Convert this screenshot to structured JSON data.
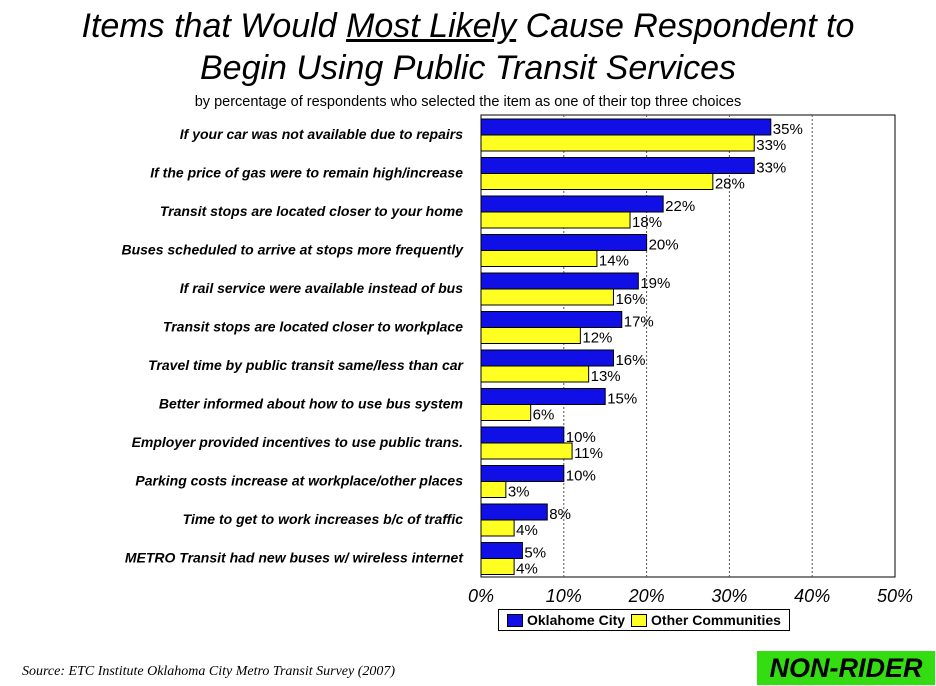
{
  "title": {
    "line1_pre": "Items that Would ",
    "line1_u": "Most Likely",
    "line1_post": " Cause Respondent to",
    "line2": "Begin Using Public Transit Services"
  },
  "subtitle": "by percentage of respondents who selected the item as one of their top three choices",
  "source": "Source:  ETC Institute Oklahoma City Metro Transit Survey (2007)",
  "badge": "NON-RIDER",
  "colors": {
    "oklahoma": "#1010e6",
    "other": "#ffff22",
    "badge": "#33dd11"
  },
  "chart_data": {
    "type": "bar",
    "orientation": "horizontal",
    "categories": [
      "If your car was not available due to repairs",
      "If the price of gas were to remain high/increase",
      "Transit stops are located closer to your home",
      "Buses scheduled to arrive at stops more frequently",
      "If rail service were available instead of bus",
      "Transit stops are located closer to workplace",
      "Travel time by public transit same/less than car",
      "Better informed about how to use bus system",
      "Employer provided incentives to use public trans.",
      "Parking costs increase at workplace/other places",
      "Time to get to work increases b/c of traffic",
      "METRO Transit had new buses w/ wireless internet"
    ],
    "series": [
      {
        "name": "Oklahome City",
        "values": [
          35,
          33,
          22,
          20,
          19,
          17,
          16,
          15,
          10,
          10,
          8,
          5
        ],
        "labels": [
          "35%",
          "33%",
          "22%",
          "20%",
          "19%",
          "17%",
          "16%",
          "15%",
          "10%",
          "10%",
          "8%",
          "5%"
        ]
      },
      {
        "name": "Other Communities",
        "values": [
          33,
          28,
          18,
          14,
          16,
          12,
          13,
          6,
          11,
          3,
          4,
          4
        ],
        "labels": [
          "33%",
          "28%",
          "18%",
          "14%",
          "16%",
          "12%",
          "13%",
          "6%",
          "11%",
          "3%",
          "4%",
          "4%"
        ]
      }
    ],
    "xlim": [
      0,
      50
    ],
    "xticks": [
      0,
      10,
      20,
      30,
      40,
      50
    ],
    "xtick_labels": [
      "0%",
      "10%",
      "20%",
      "30%",
      "40%",
      "50%"
    ],
    "grid": "vertical dotted",
    "legend": "bottom"
  }
}
